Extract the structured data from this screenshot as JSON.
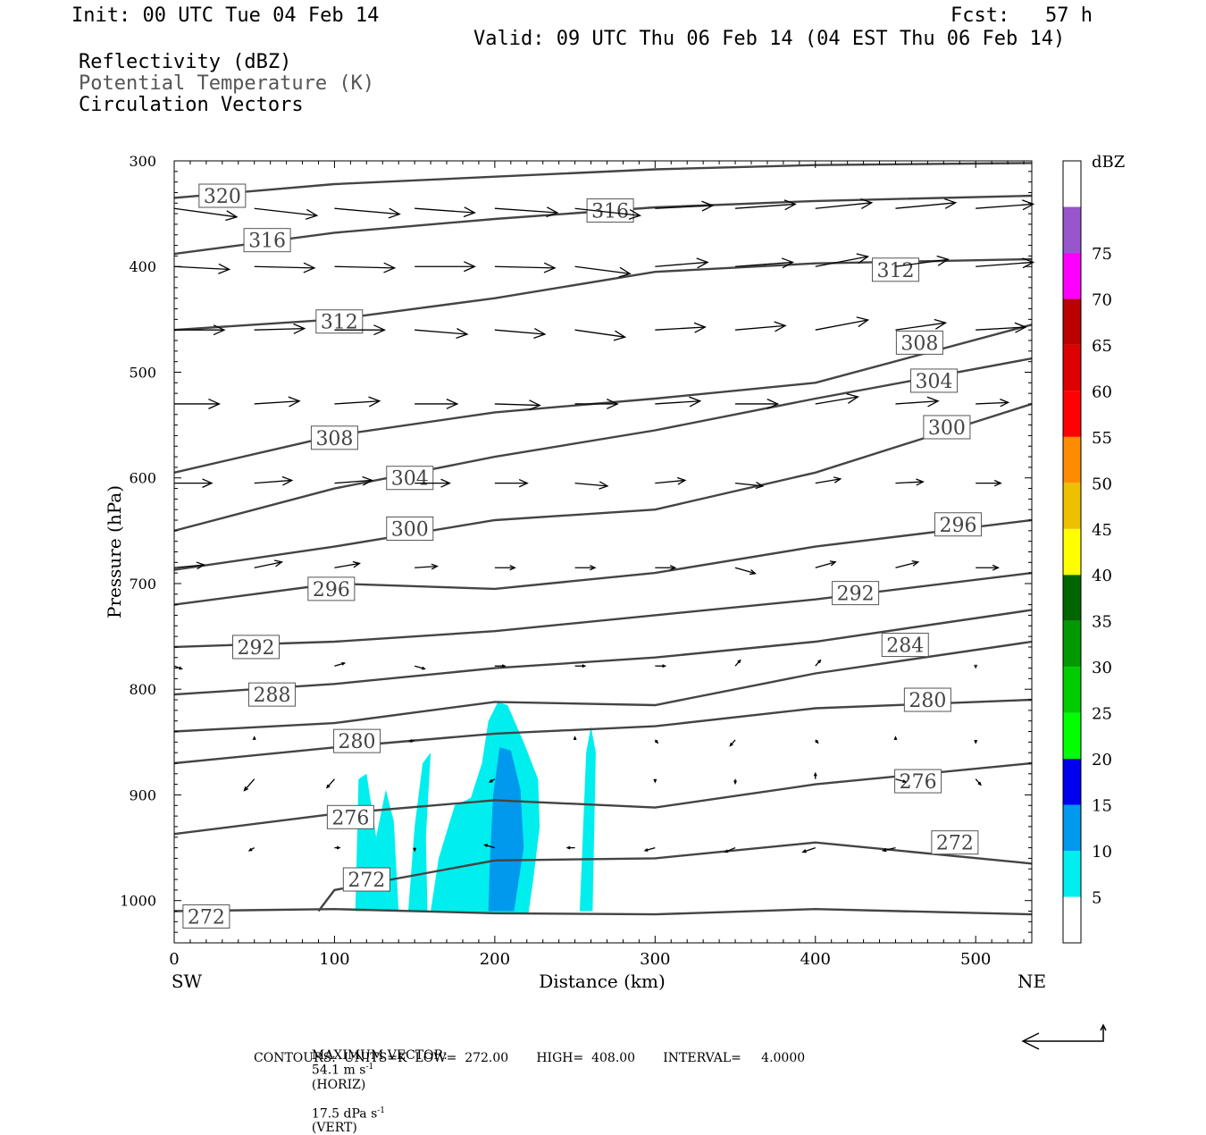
{
  "header": {
    "init": "Init: 00 UTC Tue 04 Feb 14",
    "fcst": "Fcst:   57 h",
    "valid": "Valid: 09 UTC Thu 06 Feb 14 (04 EST Thu 06 Feb 14)",
    "fields": [
      "Reflectivity (dBZ)",
      "Potential Temperature (K)",
      "Circulation Vectors"
    ]
  },
  "footer": {
    "max_vector_label": "MAXIMUM VECTOR:",
    "max_vector_horiz": "54.1 m s",
    "horiz_suffix": "(HORIZ)",
    "max_vector_vert": "17.5 dPa s",
    "vert_suffix": "(VERT)",
    "exp": "-1",
    "contours_line": "CONTOURS:  UNITS=K  LOW=  272.00       HIGH=  408.00       INTERVAL=     4.0000"
  },
  "colors": {
    "contour": "#444444",
    "vector": "#000000",
    "refl": [
      "#ffffff",
      "#00eeee",
      "#0099ee",
      "#0000ee",
      "#00ff00",
      "#00cc00",
      "#009900",
      "#006600",
      "#ffff00",
      "#eec000",
      "#ff8c00",
      "#ff0000",
      "#dd0000",
      "#bb0000",
      "#ff00ff",
      "#9955cc",
      "#ffffff"
    ]
  },
  "chart_data": {
    "type": "cross-section",
    "xlabel": "Distance (km)",
    "ylabel": "Pressure (hPa)",
    "xlim": [
      0,
      535
    ],
    "ylim": [
      1040,
      300
    ],
    "x_ticks": [
      0,
      100,
      200,
      300,
      400,
      500
    ],
    "y_ticks": [
      300,
      400,
      500,
      600,
      700,
      800,
      900,
      1000
    ],
    "x_end_labels": [
      "SW",
      "NE"
    ],
    "colorbar": {
      "title": "dBZ",
      "levels": [
        5,
        10,
        15,
        20,
        25,
        30,
        35,
        40,
        45,
        50,
        55,
        60,
        65,
        70,
        75
      ]
    },
    "theta_contours": [
      {
        "value": 320,
        "points": [
          [
            0,
            335
          ],
          [
            100,
            322
          ],
          [
            200,
            315
          ],
          [
            300,
            308
          ],
          [
            400,
            304
          ],
          [
            535,
            302
          ]
        ],
        "label_at": [
          30,
          333
        ]
      },
      {
        "value": 316,
        "points": [
          [
            0,
            388
          ],
          [
            100,
            368
          ],
          [
            200,
            355
          ],
          [
            300,
            344
          ],
          [
            400,
            338
          ],
          [
            535,
            333
          ]
        ],
        "label_at": [
          58,
          375
        ]
      },
      {
        "value": 316,
        "points": [],
        "label_at": [
          272,
          347
        ]
      },
      {
        "value": 312,
        "points": [
          [
            0,
            460
          ],
          [
            100,
            450
          ],
          [
            200,
            430
          ],
          [
            300,
            405
          ],
          [
            400,
            397
          ],
          [
            535,
            393
          ]
        ],
        "label_at": [
          450,
          403
        ]
      },
      {
        "value": 312,
        "points": [],
        "label_at": [
          103,
          452
        ]
      },
      {
        "value": 308,
        "points": [
          [
            0,
            595
          ],
          [
            100,
            560
          ],
          [
            200,
            538
          ],
          [
            300,
            525
          ],
          [
            400,
            510
          ],
          [
            535,
            455
          ]
        ],
        "label_at": [
          100,
          562
        ]
      },
      {
        "value": 308,
        "points": [],
        "label_at": [
          465,
          472
        ]
      },
      {
        "value": 304,
        "points": [
          [
            0,
            650
          ],
          [
            100,
            610
          ],
          [
            200,
            580
          ],
          [
            300,
            555
          ],
          [
            400,
            525
          ],
          [
            535,
            487
          ]
        ],
        "label_at": [
          147,
          600
        ]
      },
      {
        "value": 304,
        "points": [],
        "label_at": [
          474,
          508
        ]
      },
      {
        "value": 300,
        "points": [
          [
            0,
            687
          ],
          [
            100,
            665
          ],
          [
            200,
            640
          ],
          [
            300,
            630
          ],
          [
            400,
            595
          ],
          [
            535,
            530
          ]
        ],
        "label_at": [
          147,
          648
        ]
      },
      {
        "value": 300,
        "points": [],
        "label_at": [
          482,
          552
        ]
      },
      {
        "value": 296,
        "points": [
          [
            0,
            720
          ],
          [
            100,
            700
          ],
          [
            200,
            705
          ],
          [
            300,
            690
          ],
          [
            400,
            665
          ],
          [
            535,
            640
          ]
        ],
        "label_at": [
          98,
          705
        ]
      },
      {
        "value": 296,
        "points": [],
        "label_at": [
          489,
          644
        ]
      },
      {
        "value": 292,
        "points": [
          [
            0,
            760
          ],
          [
            100,
            755
          ],
          [
            200,
            745
          ],
          [
            300,
            730
          ],
          [
            400,
            715
          ],
          [
            535,
            690
          ]
        ],
        "label_at": [
          51,
          760
        ]
      },
      {
        "value": 292,
        "points": [],
        "label_at": [
          425,
          709
        ]
      },
      {
        "value": 288,
        "points": [
          [
            0,
            805
          ],
          [
            100,
            795
          ],
          [
            200,
            780
          ],
          [
            300,
            770
          ],
          [
            400,
            755
          ],
          [
            535,
            725
          ]
        ],
        "label_at": [
          61,
          805
        ]
      },
      {
        "value": 284,
        "points": [
          [
            0,
            840
          ],
          [
            100,
            832
          ],
          [
            200,
            812
          ],
          [
            300,
            815
          ],
          [
            400,
            785
          ],
          [
            535,
            755
          ]
        ],
        "label_at": [
          456,
          758
        ]
      },
      {
        "value": 280,
        "points": [
          [
            0,
            870
          ],
          [
            100,
            855
          ],
          [
            200,
            842
          ],
          [
            300,
            835
          ],
          [
            400,
            818
          ],
          [
            535,
            810
          ]
        ],
        "label_at": [
          114,
          849
        ]
      },
      {
        "value": 280,
        "points": [],
        "label_at": [
          470,
          810
        ]
      },
      {
        "value": 276,
        "points": [
          [
            0,
            937
          ],
          [
            100,
            918
          ],
          [
            200,
            905
          ],
          [
            300,
            912
          ],
          [
            400,
            890
          ],
          [
            535,
            870
          ]
        ],
        "label_at": [
          110,
          921
        ]
      },
      {
        "value": 276,
        "points": [],
        "label_at": [
          464,
          887
        ]
      },
      {
        "value": 272,
        "points": [
          [
            90,
            1010
          ],
          [
            100,
            990
          ],
          [
            200,
            962
          ],
          [
            300,
            960
          ],
          [
            400,
            945
          ],
          [
            535,
            965
          ]
        ],
        "label_at": [
          120,
          980
        ]
      },
      {
        "value": 272,
        "points": [],
        "label_at": [
          487,
          945
        ]
      },
      {
        "value": 272,
        "points": [
          [
            0,
            1010
          ],
          [
            100,
            1008
          ],
          [
            200,
            1012
          ],
          [
            300,
            1013
          ],
          [
            400,
            1008
          ],
          [
            535,
            1013
          ]
        ],
        "label_at": [
          20,
          1015
        ]
      }
    ],
    "reflectivity_areas": [
      {
        "dbz": 5,
        "polygon": [
          [
            113,
            1010
          ],
          [
            115,
            885
          ],
          [
            120,
            880
          ],
          [
            126,
            940
          ],
          [
            132,
            895
          ],
          [
            137,
            925
          ],
          [
            140,
            1010
          ]
        ]
      },
      {
        "dbz": 5,
        "polygon": [
          [
            146,
            1010
          ],
          [
            150,
            930
          ],
          [
            155,
            870
          ],
          [
            160,
            860
          ],
          [
            157,
            940
          ],
          [
            158,
            1010
          ]
        ]
      },
      {
        "dbz": 5,
        "polygon": [
          [
            160,
            1010
          ],
          [
            165,
            960
          ],
          [
            175,
            910
          ],
          [
            185,
            903
          ],
          [
            192,
            870
          ],
          [
            196,
            830
          ],
          [
            202,
            812
          ],
          [
            208,
            815
          ],
          [
            218,
            850
          ],
          [
            227,
            885
          ],
          [
            228,
            930
          ],
          [
            224,
            980
          ],
          [
            221,
            1012
          ],
          [
            180,
            1012
          ]
        ]
      },
      {
        "dbz": 5,
        "polygon": [
          [
            253,
            1010
          ],
          [
            257,
            860
          ],
          [
            260,
            835
          ],
          [
            263,
            860
          ],
          [
            261,
            1010
          ]
        ]
      },
      {
        "dbz": 10,
        "polygon": [
          [
            196,
            1010
          ],
          [
            197,
            960
          ],
          [
            199,
            900
          ],
          [
            203,
            855
          ],
          [
            210,
            858
          ],
          [
            216,
            895
          ],
          [
            218,
            950
          ],
          [
            212,
            1010
          ]
        ]
      }
    ],
    "vector_rows": [
      {
        "p": 345,
        "x": [
          0,
          50,
          100,
          150,
          200,
          250,
          300,
          350,
          400,
          450,
          500
        ],
        "u": [
          50,
          50,
          52,
          48,
          50,
          52,
          46,
          48,
          45,
          48,
          46
        ],
        "w": [
          -6,
          -5,
          -4,
          -3,
          -3,
          -5,
          2,
          3,
          4,
          4,
          3
        ]
      },
      {
        "p": 400,
        "x": [
          0,
          50,
          100,
          150,
          200,
          250,
          300,
          350,
          400,
          450,
          500
        ],
        "u": [
          44,
          48,
          48,
          48,
          48,
          44,
          42,
          46,
          42,
          42,
          46
        ],
        "w": [
          -2,
          -1,
          -1,
          0,
          -1,
          -5,
          3,
          3,
          7,
          5,
          3
        ]
      },
      {
        "p": 460,
        "x": [
          0,
          50,
          100,
          150,
          200,
          250,
          300,
          350,
          400,
          450,
          500
        ],
        "u": [
          40,
          40,
          40,
          42,
          40,
          40,
          40,
          40,
          42,
          40,
          40
        ],
        "w": [
          0,
          1,
          0,
          -3,
          -3,
          -5,
          2,
          3,
          7,
          5,
          2
        ]
      },
      {
        "p": 530,
        "x": [
          0,
          50,
          100,
          150,
          200,
          250,
          300,
          350,
          400,
          450,
          500
        ],
        "u": [
          36,
          36,
          36,
          34,
          36,
          34,
          36,
          34,
          34,
          34,
          26
        ],
        "w": [
          0,
          2,
          2,
          0,
          -1,
          0,
          2,
          0,
          5,
          2,
          1
        ]
      },
      {
        "p": 605,
        "x": [
          0,
          50,
          100,
          150,
          200,
          250,
          300,
          350,
          400,
          450,
          500
        ],
        "u": [
          30,
          30,
          30,
          28,
          26,
          26,
          24,
          22,
          20,
          22,
          20
        ],
        "w": [
          0,
          2,
          2,
          0,
          0,
          -2,
          2,
          -2,
          3,
          1,
          0
        ]
      },
      {
        "p": 685,
        "x": [
          0,
          50,
          100,
          150,
          200,
          250,
          300,
          350,
          400,
          450,
          500
        ],
        "u": [
          24,
          22,
          20,
          18,
          16,
          16,
          16,
          16,
          16,
          18,
          18
        ],
        "w": [
          2,
          4,
          3,
          1,
          0,
          0,
          0,
          -4,
          4,
          4,
          0
        ]
      },
      {
        "p": 778,
        "x": [
          0,
          100,
          150,
          200,
          250,
          300,
          350,
          400,
          500
        ],
        "u": [
          6,
          8,
          8,
          8,
          8,
          8,
          4,
          4,
          0
        ],
        "w": [
          -2,
          2,
          -2,
          0,
          0,
          0,
          4,
          4,
          -1
        ]
      },
      {
        "p": 848,
        "x": [
          50,
          150,
          250,
          300,
          350,
          400,
          450,
          500
        ],
        "u": [
          0,
          -4,
          0,
          2,
          -4,
          2,
          0,
          0
        ],
        "w": [
          2,
          -1,
          2,
          -2,
          -4,
          -2,
          2,
          -2
        ]
      },
      {
        "p": 885,
        "x": [
          50,
          100,
          200,
          300,
          350,
          400,
          450,
          500
        ],
        "u": [
          -8,
          -6,
          -4,
          0,
          0,
          0,
          8,
          4
        ],
        "w": [
          -8,
          -6,
          -2,
          -2,
          -3,
          4,
          -2,
          -4
        ]
      },
      {
        "p": 950,
        "x": [
          50,
          100,
          150,
          200,
          250,
          300,
          350,
          400,
          450
        ],
        "u": [
          -4,
          4,
          0,
          -8,
          -6,
          -8,
          -8,
          -10,
          -10
        ],
        "w": [
          -2,
          0,
          -2,
          2,
          0,
          -2,
          -3,
          -3,
          -2
        ]
      }
    ]
  }
}
